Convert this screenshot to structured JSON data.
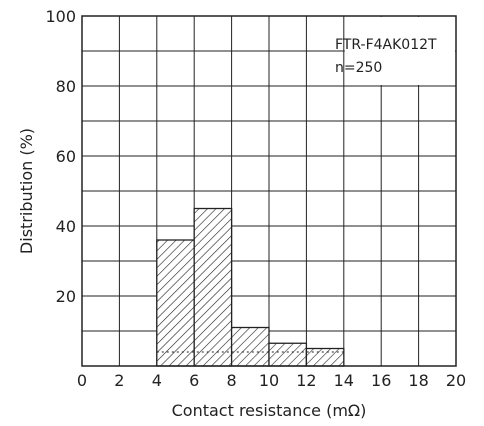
{
  "chart_data": {
    "type": "bar",
    "title": "",
    "xlabel": "Contact resistance (mΩ)",
    "ylabel": "Distribution (%)",
    "xlim": [
      0,
      20
    ],
    "ylim": [
      0,
      100
    ],
    "x_ticks": [
      "0",
      "2",
      "4",
      "6",
      "8",
      "10",
      "12",
      "14",
      "16",
      "18",
      "20"
    ],
    "y_ticks": [
      "20",
      "40",
      "60",
      "80",
      "100"
    ],
    "grid": true,
    "legend_placement": "top-right",
    "series": [
      {
        "bins": [
          {
            "x0": 4,
            "x1": 6,
            "value": 36
          },
          {
            "x0": 6,
            "x1": 8,
            "value": 45
          },
          {
            "x0": 8,
            "x1": 10,
            "value": 11
          },
          {
            "x0": 10,
            "x1": 12,
            "value": 6.5
          },
          {
            "x0": 12,
            "x1": 14,
            "value": 5
          }
        ]
      }
    ],
    "annotation": {
      "model": "FTR-F4AK012T",
      "sample": "n=250"
    }
  }
}
